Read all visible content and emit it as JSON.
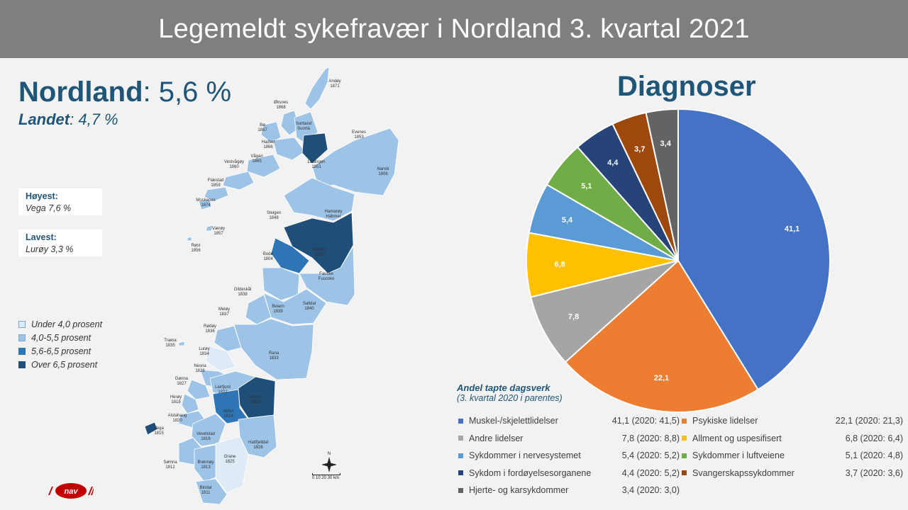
{
  "title": "Legemeldt sykefravær i Nordland 3. kvartal 2021",
  "region": {
    "name": "Nordland",
    "sep": ": ",
    "value": "5,6 %"
  },
  "country": {
    "name": "Landet",
    "sep": ": ",
    "value": "4,7 %"
  },
  "highest": {
    "label": "Høyest:",
    "value": "Vega 7,6 %"
  },
  "lowest": {
    "label": "Lavest:",
    "value": "Lurøy 3,3 %"
  },
  "map_legend": [
    {
      "label": "Under 4,0 prosent",
      "color": "#deebf7"
    },
    {
      "label": "4,0-5,5 prosent",
      "color": "#9dc3e6"
    },
    {
      "label": "5,6-6,5 prosent",
      "color": "#2e75b6"
    },
    {
      "label": "Over 6,5 prosent",
      "color": "#1f4e79"
    }
  ],
  "map_labels": [
    {
      "n": "Andøy",
      "c": "1871"
    },
    {
      "n": "Øksnes",
      "c": "1868"
    },
    {
      "n": "Sortland",
      "c": "Suortá"
    },
    {
      "n": "Bø",
      "c": "1867"
    },
    {
      "n": "Hadsel",
      "c": "1866"
    },
    {
      "n": "Evenes",
      "c": "1853"
    },
    {
      "n": "Vågan",
      "c": "1865"
    },
    {
      "n": "Vestvågøy",
      "c": "1860"
    },
    {
      "n": "Lødingen",
      "c": "1851"
    },
    {
      "n": "Narvik",
      "c": "1806"
    },
    {
      "n": "Flakstad",
      "c": "1859"
    },
    {
      "n": "Moskenes",
      "c": "1874"
    },
    {
      "n": "Hamarøy",
      "c": "Hábmer"
    },
    {
      "n": "Steigen",
      "c": "1848"
    },
    {
      "n": "Værøy",
      "c": "1857"
    },
    {
      "n": "Røst",
      "c": "1856"
    },
    {
      "n": "Sørfold",
      "c": "1845"
    },
    {
      "n": "Bodø",
      "c": "1804"
    },
    {
      "n": "Fauske",
      "c": "Fuossko"
    },
    {
      "n": "Gildeskål",
      "c": "1838"
    },
    {
      "n": "Beiarn",
      "c": "1839"
    },
    {
      "n": "Saltdal",
      "c": "1840"
    },
    {
      "n": "Meløy",
      "c": "1837"
    },
    {
      "n": "Rødøy",
      "c": "1836"
    },
    {
      "n": "Træna",
      "c": "1835"
    },
    {
      "n": "Lurøy",
      "c": "1834"
    },
    {
      "n": "Rana",
      "c": "1833"
    },
    {
      "n": "Nesna",
      "c": "1828"
    },
    {
      "n": "Dønna",
      "c": "1827"
    },
    {
      "n": "Hemnes",
      "c": "1832"
    },
    {
      "n": "Leirfjord",
      "c": "1822"
    },
    {
      "n": "Herøy",
      "c": "1818"
    },
    {
      "n": "Vefsn",
      "c": "1824"
    },
    {
      "n": "Alstahaug",
      "c": "1820"
    },
    {
      "n": "Vega",
      "c": "1815"
    },
    {
      "n": "Vevelstad",
      "c": "1816"
    },
    {
      "n": "Hattfjelldal",
      "c": "1826"
    },
    {
      "n": "Grane",
      "c": "1825"
    },
    {
      "n": "Sømna",
      "c": "1812"
    },
    {
      "n": "Brønnøy",
      "c": "1813"
    },
    {
      "n": "Bindal",
      "c": "1811"
    }
  ],
  "scale_text": "0  10  20  30 km",
  "compass_n": "N",
  "logo_text": "nav",
  "diag_title": "Diagnoser",
  "andel_title": "Andel tapte dagsverk",
  "andel_sub": "(3. kvartal 2020 i parentes)",
  "chart_data": {
    "type": "pie",
    "start": "12 o'clock, clockwise",
    "slices": [
      {
        "name": "Muskel-/skjelettlidelser",
        "value": 41.1,
        "label": "41,1",
        "prev": "41,1  (2020: 41,5)",
        "color": "#4472c4"
      },
      {
        "name": "Psykiske lidelser",
        "value": 22.1,
        "label": "22,1",
        "prev": "22,1  (2020: 21,3)",
        "color": "#ed7d31"
      },
      {
        "name": "Andre lidelser",
        "value": 7.8,
        "label": "7,8",
        "prev": "7,8  (2020: 8,8)",
        "color": "#a5a5a5"
      },
      {
        "name": "Allment og uspesifisert",
        "value": 6.8,
        "label": "6,8",
        "prev": "6,8  (2020: 6,4)",
        "color": "#ffc000"
      },
      {
        "name": "Sykdommer i nervesystemet",
        "value": 5.4,
        "label": "5,4",
        "prev": "5,4  (2020: 5,2)",
        "color": "#5b9bd5"
      },
      {
        "name": "Sykdommer i luftveiene",
        "value": 5.1,
        "label": "5,1",
        "prev": "5,1  (2020: 4,8)",
        "color": "#70ad47"
      },
      {
        "name": "Sykdom i fordøyelsesorganene",
        "value": 4.4,
        "label": "4,4",
        "prev": "4,4  (2020: 5,2)",
        "color": "#264478"
      },
      {
        "name": "Svangerskapssykdommer",
        "value": 3.7,
        "label": "3,7",
        "prev": "3,7  (2020: 3,6)",
        "color": "#9e480e"
      },
      {
        "name": "Hjerte- og karsykdommer",
        "value": 3.4,
        "label": "3,4",
        "prev": "3,4  (2020: 3,0)",
        "color": "#636363"
      }
    ]
  }
}
